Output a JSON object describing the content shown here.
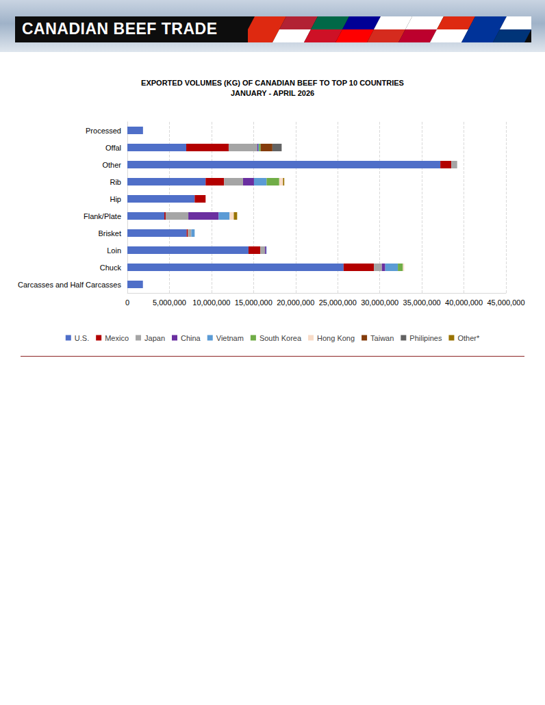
{
  "header": {
    "title": "CANADIAN BEEF TRADE"
  },
  "chart_data": {
    "type": "bar",
    "orientation": "horizontal",
    "stacked": true,
    "grid": true,
    "legend": "bottom",
    "title": "EXPORTED VOLUMES (KG) OF CANADIAN BEEF TO TOP 10 COUNTRIES",
    "subtitle": "JANUARY - APRIL 2026",
    "categories": [
      "Processed",
      "Offal",
      "Other",
      "Rib",
      "Hip",
      "Flank/Plate",
      "Brisket",
      "Loin",
      "Chuck",
      "Carcasses and Half Carcasses"
    ],
    "xlim": [
      0,
      45000000
    ],
    "xticks": [
      0,
      {
        "value": 5000000,
        "label": "5,000,000"
      },
      {
        "value": 10000000,
        "label": "10,000,000"
      },
      {
        "value": 15000000,
        "label": "15,000,000"
      },
      {
        "value": 20000000,
        "label": "20,000,000"
      },
      {
        "value": 25000000,
        "label": "25,000,000"
      },
      {
        "value": 30000000,
        "label": "30,000,000"
      },
      {
        "value": 35000000,
        "label": "35,000,000"
      },
      {
        "value": 40000000,
        "label": "40,000,000"
      },
      {
        "value": 45000000,
        "label": "45,000,000"
      }
    ],
    "series": [
      {
        "name": "U.S.",
        "color": "#4f6fc8",
        "values": [
          1860000,
          7000000,
          37200000,
          9300000,
          8000000,
          4400000,
          7050000,
          14400000,
          25700000,
          1850000
        ]
      },
      {
        "name": "Mexico",
        "color": "#b30000",
        "values": [
          0,
          5040000,
          1300000,
          2200000,
          1300000,
          150000,
          150000,
          1400000,
          3600000,
          0
        ]
      },
      {
        "name": "Japan",
        "color": "#a5a5a5",
        "values": [
          0,
          3400000,
          700000,
          2250000,
          0,
          2700000,
          400000,
          550000,
          950000,
          0
        ]
      },
      {
        "name": "China",
        "color": "#6a2fa0",
        "values": [
          0,
          100000,
          0,
          1300000,
          0,
          3600000,
          0,
          150000,
          400000,
          0
        ]
      },
      {
        "name": "Vietnam",
        "color": "#5b9bd5",
        "values": [
          0,
          100000,
          0,
          1500000,
          0,
          1300000,
          400000,
          50000,
          1500000,
          0
        ]
      },
      {
        "name": "South Korea",
        "color": "#70ad47",
        "values": [
          0,
          200000,
          0,
          1500000,
          0,
          0,
          0,
          0,
          600000,
          0
        ]
      },
      {
        "name": "Hong Kong",
        "color": "#f8dcc8",
        "values": [
          0,
          0,
          0,
          450000,
          0,
          500000,
          0,
          0,
          150000,
          0
        ]
      },
      {
        "name": "Taiwan",
        "color": "#843c0c",
        "values": [
          0,
          1400000,
          0,
          0,
          0,
          0,
          0,
          0,
          0,
          0
        ]
      },
      {
        "name": "Philipines",
        "color": "#636363",
        "values": [
          0,
          1100000,
          0,
          0,
          0,
          0,
          0,
          0,
          0,
          0
        ]
      },
      {
        "name": "Other*",
        "color": "#997300",
        "values": [
          0,
          0,
          0,
          150000,
          0,
          400000,
          0,
          0,
          0,
          0
        ]
      }
    ]
  }
}
